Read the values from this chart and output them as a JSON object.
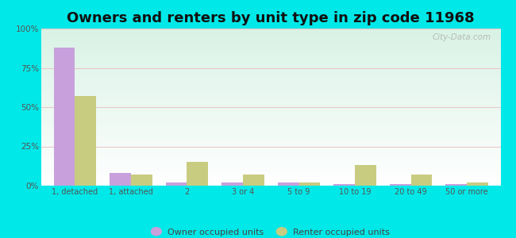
{
  "title": "Owners and renters by unit type in zip code 11968",
  "categories": [
    "1, detached",
    "1, attached",
    "2",
    "3 or 4",
    "5 to 9",
    "10 to 19",
    "20 to 49",
    "50 or more"
  ],
  "owner_values": [
    88,
    8,
    2,
    2,
    2,
    1,
    1,
    1
  ],
  "renter_values": [
    57,
    7,
    15,
    7,
    2,
    13,
    7,
    2
  ],
  "owner_color": "#c8a0dc",
  "renter_color": "#c8cc80",
  "background_color": "#00e8e8",
  "title_fontsize": 13,
  "ylabel_ticks": [
    "0%",
    "25%",
    "50%",
    "75%",
    "100%"
  ],
  "ylim": [
    0,
    100
  ],
  "bar_width": 0.38,
  "watermark": "City-Data.com"
}
